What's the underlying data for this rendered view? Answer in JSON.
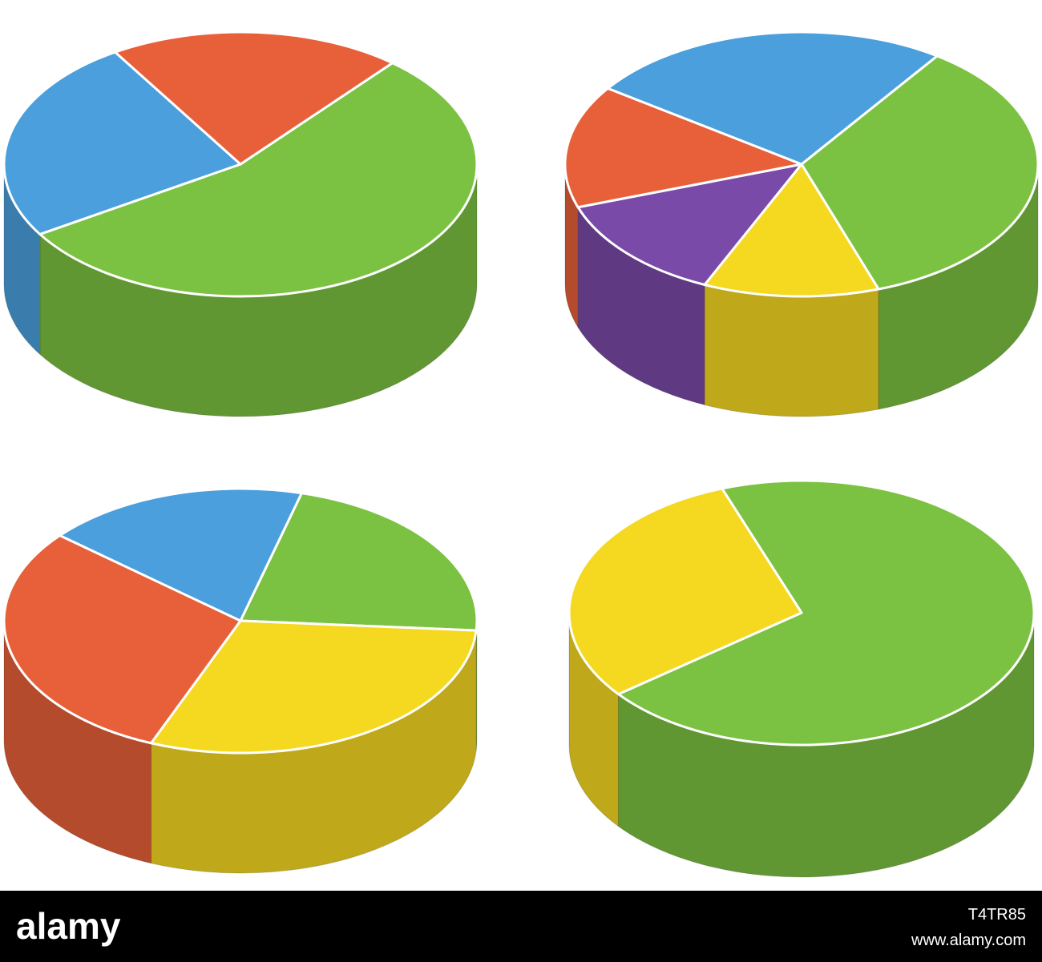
{
  "chart_data": [
    {
      "type": "pie",
      "values": [
        55,
        25,
        20
      ],
      "colors": [
        "#7cc242",
        "#4a9fdc",
        "#e8603a"
      ],
      "start_angle": -50
    },
    {
      "type": "pie",
      "values": [
        35,
        12,
        13,
        15,
        25
      ],
      "colors": [
        "#7cc242",
        "#f5d820",
        "#7a4aa8",
        "#e8603a",
        "#4a9fdc"
      ],
      "start_angle": -55
    },
    {
      "type": "pie",
      "values": [
        22,
        30,
        30,
        18
      ],
      "colors": [
        "#7cc242",
        "#f5d820",
        "#e8603a",
        "#4a9fdc"
      ],
      "start_angle": -75
    },
    {
      "type": "pie",
      "values": [
        70,
        30
      ],
      "colors": [
        "#7cc242",
        "#f5d820"
      ],
      "start_angle": -110
    }
  ],
  "footer": {
    "logo": "alamy",
    "image_id": "T4TR85",
    "url": "www.alamy.com"
  }
}
